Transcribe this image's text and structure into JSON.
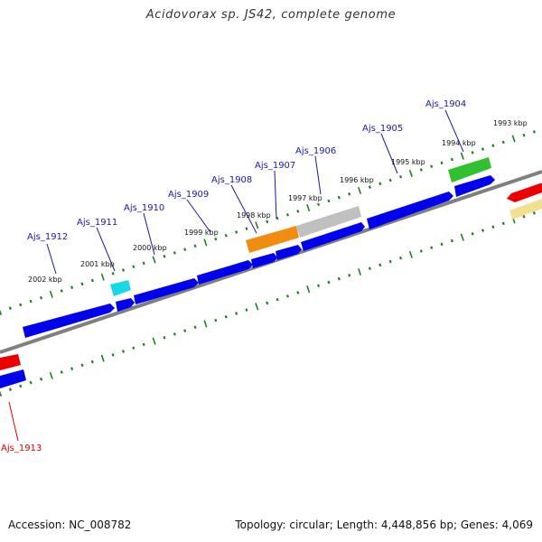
{
  "title": "Acidovorax sp. JS42, complete genome",
  "footer": {
    "accession": "Accession: NC_008782",
    "summary": "Topology: circular; Length: 4,448,856 bp; Genes: 4,069"
  },
  "colors": {
    "backbone": "#808080",
    "forward_gene": "#0000ee",
    "red_gene": "#ee0000",
    "tick": "#208020",
    "label_blue": "#1a1aa6",
    "label_red": "#dd0000"
  },
  "kbp_labels": [
    "2002 kbp",
    "2001 kbp",
    "2000 kbp",
    "1999 kbp",
    "1998 kbp",
    "1997 kbp",
    "1996 kbp",
    "1995 kbp",
    "1994 kbp",
    "1993 kbp"
  ],
  "gene_labels": [
    {
      "text": "Ajs_1912",
      "color": "blue"
    },
    {
      "text": "Ajs_1911",
      "color": "blue"
    },
    {
      "text": "Ajs_1910",
      "color": "blue"
    },
    {
      "text": "Ajs_1909",
      "color": "blue"
    },
    {
      "text": "Ajs_1908",
      "color": "blue"
    },
    {
      "text": "Ajs_1907",
      "color": "blue"
    },
    {
      "text": "Ajs_1906",
      "color": "blue"
    },
    {
      "text": "Ajs_1905",
      "color": "blue"
    },
    {
      "text": "Ajs_1904",
      "color": "blue"
    },
    {
      "text": "Ajs_1913",
      "color": "red"
    }
  ]
}
